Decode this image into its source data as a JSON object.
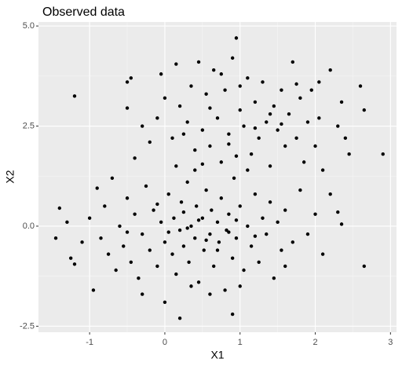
{
  "chart_data": {
    "type": "scatter",
    "title": "Observed data",
    "x_label": "X1",
    "y_label": "X2",
    "color": "#000000",
    "grid": true,
    "xlim": [
      -1.68,
      3.08
    ],
    "ylim": [
      -2.65,
      5.1
    ],
    "xticks": [
      -1,
      0,
      1,
      2,
      3
    ],
    "yticks": [
      {
        "value": -2.5,
        "label": "-2.5"
      },
      {
        "value": 0,
        "label": "0.0"
      },
      {
        "value": 2.5,
        "label": "2.5"
      },
      {
        "value": 5,
        "label": "5.0"
      }
    ],
    "x": [
      -1.4,
      -1.3,
      -1.25,
      -1.2,
      -1.1,
      -1.0,
      -0.95,
      -0.9,
      -0.85,
      -0.8,
      -0.75,
      -0.7,
      -0.65,
      -0.6,
      -0.55,
      -0.5,
      -0.45,
      -0.4,
      -0.35,
      -0.3,
      -0.25,
      -0.2,
      -0.15,
      -0.1,
      -0.05,
      0.0,
      0.05,
      0.1,
      0.12,
      0.15,
      0.2,
      0.22,
      0.25,
      0.3,
      0.32,
      0.35,
      0.4,
      0.42,
      0.45,
      0.5,
      0.52,
      0.55,
      0.6,
      0.62,
      0.65,
      0.7,
      0.72,
      0.75,
      0.8,
      0.82,
      0.85,
      0.9,
      0.92,
      0.95,
      1.0,
      1.05,
      1.1,
      1.15,
      1.2,
      1.25,
      1.3,
      1.35,
      1.4,
      1.45,
      1.5,
      1.55,
      1.6,
      1.7,
      1.8,
      1.9,
      2.0,
      2.1,
      2.2,
      2.3,
      2.35,
      2.65,
      0.2,
      0.9,
      -1.45,
      0.0,
      0.6,
      1.0,
      -0.3,
      0.3,
      0.45,
      0.55,
      0.7,
      0.25,
      0.05,
      0.85,
      0.95,
      -0.1,
      1.2,
      0.4,
      -0.5,
      0.15,
      1.6,
      0.35,
      1.1,
      -1.2,
      -0.5,
      -0.45,
      -0.5,
      -0.3,
      -0.2,
      -0.4,
      -0.1,
      -0.05,
      0.0,
      0.1,
      0.2,
      0.15,
      0.3,
      0.35,
      0.4,
      0.45,
      0.5,
      0.55,
      0.6,
      0.65,
      0.7,
      0.75,
      0.8,
      0.85,
      0.9,
      0.95,
      1.0,
      1.05,
      1.1,
      1.15,
      1.2,
      1.25,
      1.3,
      1.35,
      1.4,
      1.45,
      1.5,
      1.55,
      1.6,
      1.65,
      1.7,
      1.75,
      1.8,
      1.85,
      1.9,
      1.95,
      2.0,
      2.05,
      2.1,
      2.2,
      2.3,
      2.35,
      2.4,
      2.45,
      2.6,
      2.65,
      2.9,
      1.0,
      0.6,
      1.4,
      0.25,
      0.75,
      1.2,
      0.5,
      0.95,
      1.55,
      1.75,
      2.05,
      0.85
    ],
    "values": [
      0.45,
      0.1,
      -0.8,
      -0.95,
      -0.4,
      0.2,
      -1.6,
      0.95,
      -0.3,
      0.5,
      -0.7,
      1.2,
      -1.1,
      0.0,
      -0.5,
      0.7,
      -0.9,
      0.3,
      -1.3,
      -0.2,
      1.0,
      -0.6,
      0.4,
      -1.0,
      0.1,
      -0.4,
      0.8,
      -0.7,
      0.2,
      -1.2,
      -0.1,
      0.6,
      -0.5,
      1.1,
      -0.9,
      0.0,
      -0.3,
      0.5,
      -1.4,
      0.2,
      -0.6,
      0.9,
      -0.2,
      0.4,
      -1.0,
      0.1,
      -0.4,
      0.7,
      -1.6,
      -0.1,
      0.3,
      -0.8,
      1.2,
      -0.3,
      0.5,
      -1.1,
      0.0,
      -0.5,
      0.8,
      -0.9,
      0.2,
      -0.2,
      0.6,
      -1.3,
      0.1,
      -0.6,
      0.4,
      -0.4,
      0.9,
      -0.2,
      0.3,
      -0.7,
      0.8,
      0.35,
      0.05,
      -1.0,
      -2.3,
      -2.2,
      -0.3,
      -1.9,
      -1.7,
      -1.5,
      -1.7,
      -0.05,
      0.15,
      -0.35,
      -0.6,
      0.35,
      -0.15,
      -0.15,
      0.15,
      0.55,
      -0.25,
      1.4,
      -0.15,
      1.5,
      -1.0,
      -1.5,
      1.4,
      3.25,
      3.6,
      3.7,
      2.95,
      2.5,
      2.1,
      1.7,
      2.7,
      3.8,
      3.2,
      2.2,
      3.0,
      4.05,
      2.6,
      3.5,
      1.9,
      4.1,
      2.4,
      3.3,
      2.0,
      3.9,
      2.7,
      1.6,
      3.4,
      2.3,
      4.2,
      4.7,
      2.9,
      2.5,
      3.7,
      1.8,
      3.1,
      2.2,
      3.6,
      2.6,
      1.5,
      3.0,
      2.4,
      3.4,
      2.0,
      2.8,
      4.1,
      2.2,
      3.2,
      1.6,
      2.6,
      3.4,
      2.0,
      3.6,
      1.4,
      3.9,
      2.5,
      3.1,
      2.2,
      1.8,
      3.5,
      2.9,
      1.8,
      3.5,
      2.95,
      2.8,
      2.3,
      3.8,
      2.45,
      1.55,
      1.75,
      2.55,
      3.55,
      2.7,
      2.05
    ]
  }
}
